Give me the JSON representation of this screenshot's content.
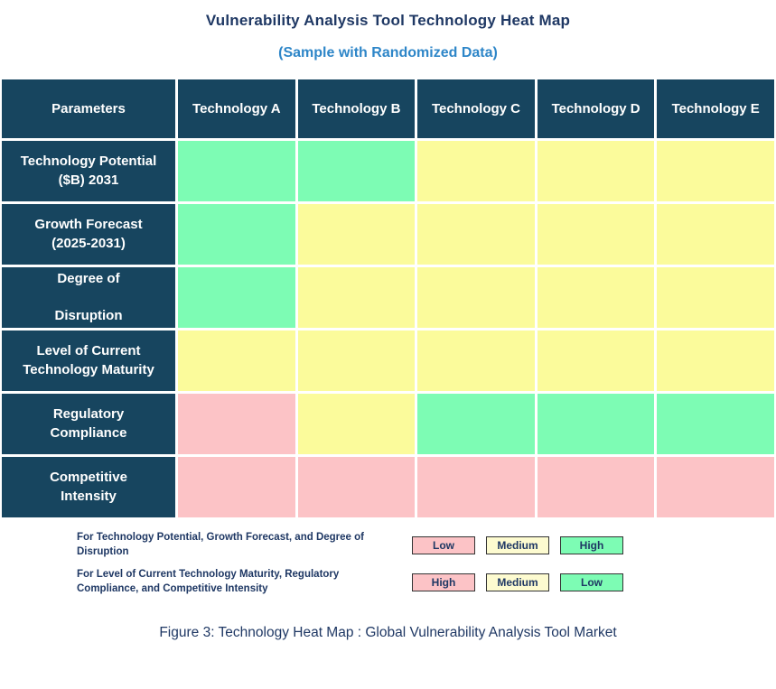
{
  "header": {
    "title": "Vulnerability Analysis Tool Technology Heat Map",
    "subtitle": "(Sample with Randomized Data)"
  },
  "colors": {
    "header_bg": "#17455F",
    "header_text": "#FFFFFF",
    "title_navy": "#1F3864",
    "subtitle_blue": "#2E86C8",
    "green": "#7DFCB4",
    "yellow": "#FBFB9B",
    "pink": "#FCC3C6",
    "legend_medium_yellow": "#FDFBD0",
    "box_border": "#333333"
  },
  "chart_data": {
    "type": "heatmap",
    "title": "Vulnerability Analysis Tool Technology Heat Map",
    "subtitle": "(Sample with Randomized Data)",
    "corner_label": "Parameters",
    "columns": [
      "Technology A",
      "Technology B",
      "Technology C",
      "Technology D",
      "Technology E"
    ],
    "rows": [
      {
        "parameter": "Technology Potential ($B) 2031",
        "parameter_display": "Technology Potential\n($B) 2031",
        "cell_colors": [
          "green",
          "green",
          "yellow",
          "yellow",
          "yellow"
        ],
        "cell_levels": [
          "High",
          "High",
          "Medium",
          "Medium",
          "Medium"
        ]
      },
      {
        "parameter": "Growth Forecast (2025-2031)",
        "parameter_display": "Growth Forecast\n(2025-2031)",
        "cell_colors": [
          "green",
          "yellow",
          "yellow",
          "yellow",
          "yellow"
        ],
        "cell_levels": [
          "High",
          "Medium",
          "Medium",
          "Medium",
          "Medium"
        ]
      },
      {
        "parameter": "Degree of Disruption",
        "parameter_display": "Degree of\n\nDisruption",
        "cell_colors": [
          "green",
          "yellow",
          "yellow",
          "yellow",
          "yellow"
        ],
        "cell_levels": [
          "High",
          "Medium",
          "Medium",
          "Medium",
          "Medium"
        ]
      },
      {
        "parameter": "Level of Current Technology Maturity",
        "parameter_display": "Level of Current\nTechnology Maturity",
        "cell_colors": [
          "yellow",
          "yellow",
          "yellow",
          "yellow",
          "yellow"
        ],
        "cell_levels": [
          "Medium",
          "Medium",
          "Medium",
          "Medium",
          "Medium"
        ]
      },
      {
        "parameter": "Regulatory Compliance",
        "parameter_display": "Regulatory\nCompliance",
        "cell_colors": [
          "pink",
          "yellow",
          "green",
          "green",
          "green"
        ],
        "cell_levels": [
          "High",
          "Medium",
          "Low",
          "Low",
          "Low"
        ]
      },
      {
        "parameter": "Competitive Intensity",
        "parameter_display": "Competitive\nIntensity",
        "cell_colors": [
          "pink",
          "pink",
          "pink",
          "pink",
          "pink"
        ],
        "cell_levels": [
          "High",
          "High",
          "High",
          "High",
          "High"
        ]
      }
    ]
  },
  "legend": {
    "rows": [
      {
        "text": "For Technology Potential, Growth Forecast, and Degree of Disruption",
        "items": [
          {
            "label": "Low",
            "color": "pink"
          },
          {
            "label": "Medium",
            "color": "legend_medium_yellow"
          },
          {
            "label": "High",
            "color": "green"
          }
        ]
      },
      {
        "text": "For Level of Current Technology Maturity, Regulatory Compliance, and Competitive Intensity",
        "items": [
          {
            "label": "High",
            "color": "pink"
          },
          {
            "label": "Medium",
            "color": "legend_medium_yellow"
          },
          {
            "label": "Low",
            "color": "green"
          }
        ]
      }
    ]
  },
  "caption": "Figure 3: Technology Heat Map : Global Vulnerability Analysis Tool Market"
}
